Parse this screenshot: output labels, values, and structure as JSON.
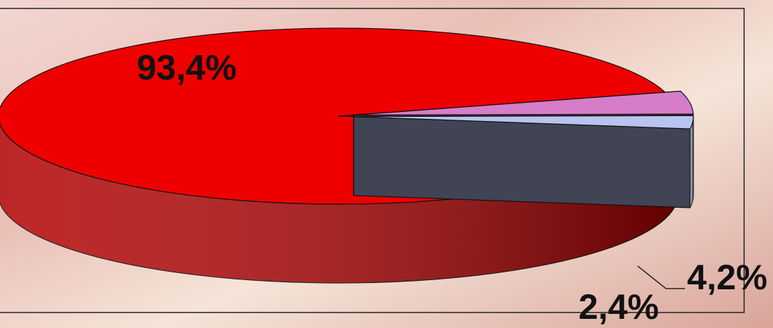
{
  "chart_data": {
    "type": "pie3d",
    "categories": [
      null,
      null,
      null
    ],
    "values": [
      93.4,
      4.2,
      2.4
    ],
    "value_labels": [
      "93,4%",
      "4,2%",
      "2,4%"
    ],
    "colors": [
      "#ee0000",
      "#d77cc8",
      "#b9c3ef"
    ],
    "exploded": [
      false,
      true,
      true
    ]
  }
}
